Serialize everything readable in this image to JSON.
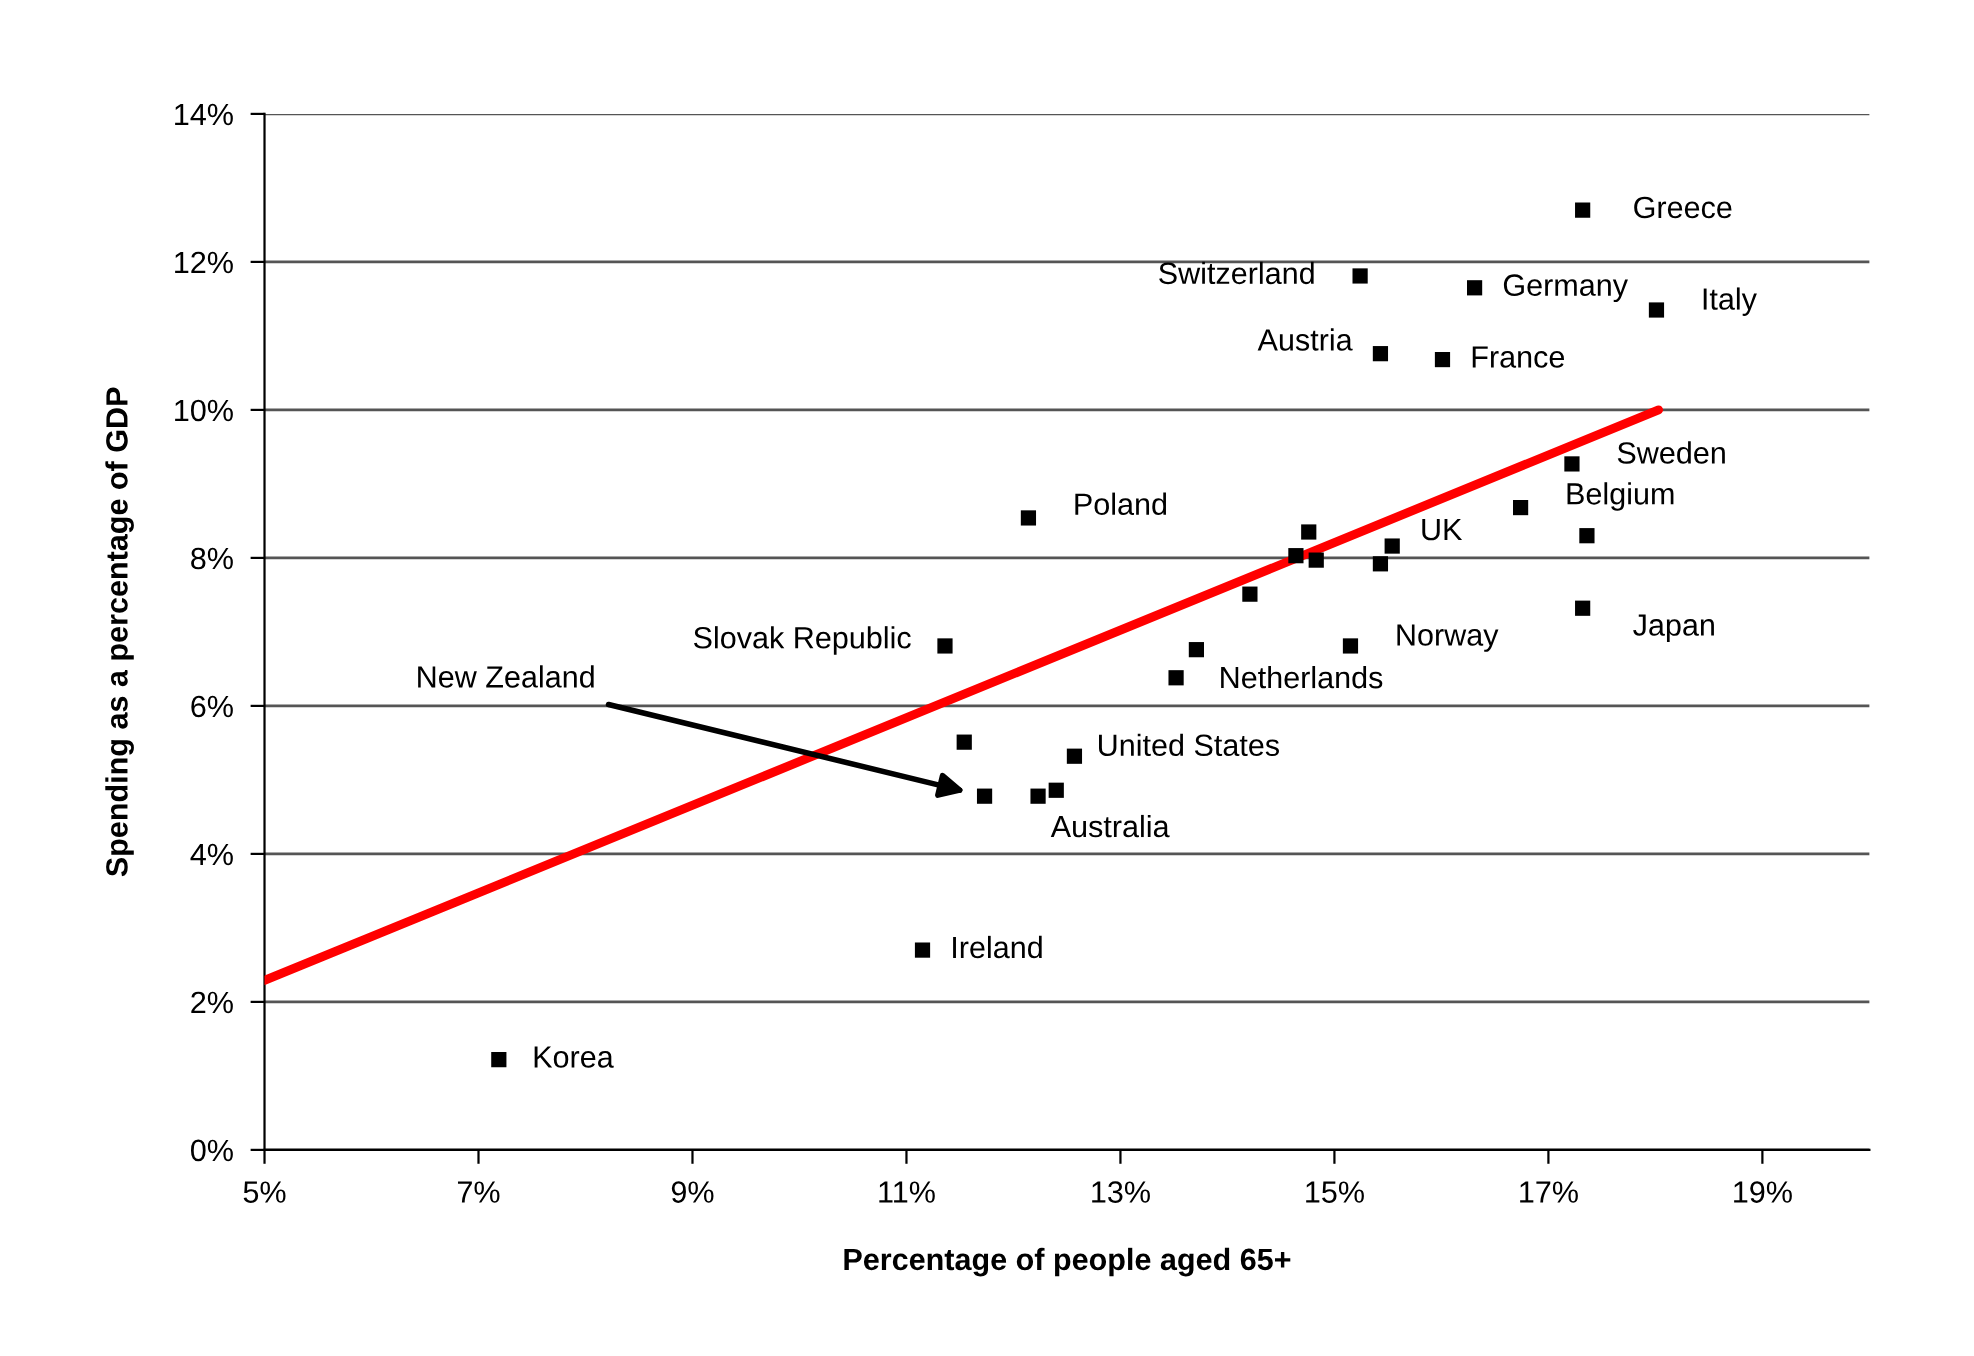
{
  "chart_data": {
    "type": "scatter",
    "xlabel": "Percentage of people aged 65+",
    "ylabel": "Spending as a percentage of GDP",
    "xlim": [
      5,
      20
    ],
    "xticks": [
      {
        "value": 5,
        "label": "5%"
      },
      {
        "value": 7,
        "label": "7%"
      },
      {
        "value": 9,
        "label": "9%"
      },
      {
        "value": 11,
        "label": "11%"
      },
      {
        "value": 13,
        "label": "13%"
      },
      {
        "value": 15,
        "label": "15%"
      },
      {
        "value": 17,
        "label": "17%"
      },
      {
        "value": 19,
        "label": "19%"
      }
    ],
    "ylim": [
      0,
      14
    ],
    "yticks": [
      {
        "value": 0,
        "label": "0%"
      },
      {
        "value": 2,
        "label": "2%"
      },
      {
        "value": 4,
        "label": "4%"
      },
      {
        "value": 6,
        "label": "6%"
      },
      {
        "value": 8,
        "label": "8%"
      },
      {
        "value": 10,
        "label": "10%"
      },
      {
        "value": 12,
        "label": "12%"
      },
      {
        "value": 14,
        "label": "14%"
      }
    ],
    "grid": "y",
    "series": [
      {
        "type": "scatter",
        "marker": "square",
        "color": "#000000",
        "x": [
          17.32,
          15.24,
          16.31,
          18.01,
          15.43,
          16.01,
          17.22,
          16.74,
          17.36,
          12.14,
          15.54,
          14.76,
          14.64,
          14.83,
          15.43,
          14.21,
          17.32,
          11.36,
          15.15,
          13.71,
          13.52,
          11.54,
          12.57,
          12.4,
          12.23,
          11.73,
          11.15,
          7.19
        ],
        "values": [
          12.7,
          11.81,
          11.65,
          11.35,
          10.76,
          10.68,
          9.27,
          8.68,
          8.3,
          8.54,
          8.16,
          8.35,
          8.03,
          7.97,
          7.92,
          7.51,
          7.32,
          6.81,
          6.81,
          6.76,
          6.38,
          5.51,
          5.32,
          4.86,
          4.78,
          4.78,
          2.7,
          1.22
        ]
      },
      {
        "type": "line",
        "color": "#ff0000",
        "x": [
          5,
          18.03
        ],
        "values": [
          2.29,
          10.0
        ]
      }
    ],
    "annotations": [
      {
        "text": "Greece",
        "x": 17.32,
        "y": 12.7
      },
      {
        "text": "Switzerland",
        "x": 15.24,
        "y": 11.81
      },
      {
        "text": "Germany",
        "x": 16.31,
        "y": 11.65
      },
      {
        "text": "Italy",
        "x": 18.01,
        "y": 11.35
      },
      {
        "text": "Austria",
        "x": 15.43,
        "y": 10.76
      },
      {
        "text": "France",
        "x": 16.01,
        "y": 10.68
      },
      {
        "text": "Sweden",
        "x": 17.22,
        "y": 9.27
      },
      {
        "text": "Belgium",
        "x": 16.74,
        "y": 8.68
      },
      {
        "text": "Poland",
        "x": 12.14,
        "y": 8.54
      },
      {
        "text": "UK",
        "x": 15.54,
        "y": 8.16
      },
      {
        "text": "Japan",
        "x": 17.32,
        "y": 7.32
      },
      {
        "text": "Slovak Republic",
        "x": 11.36,
        "y": 6.81
      },
      {
        "text": "Norway",
        "x": 15.15,
        "y": 6.81
      },
      {
        "text": "Netherlands",
        "x": 13.71,
        "y": 6.76
      },
      {
        "text": "United States",
        "x": 12.57,
        "y": 5.32
      },
      {
        "text": "Australia",
        "x": 12.4,
        "y": 4.86
      },
      "New Zealand",
      {
        "text": "Ireland",
        "x": 11.15,
        "y": 2.7
      },
      {
        "text": "Korea",
        "x": 7.19,
        "y": 1.22
      }
    ]
  }
}
